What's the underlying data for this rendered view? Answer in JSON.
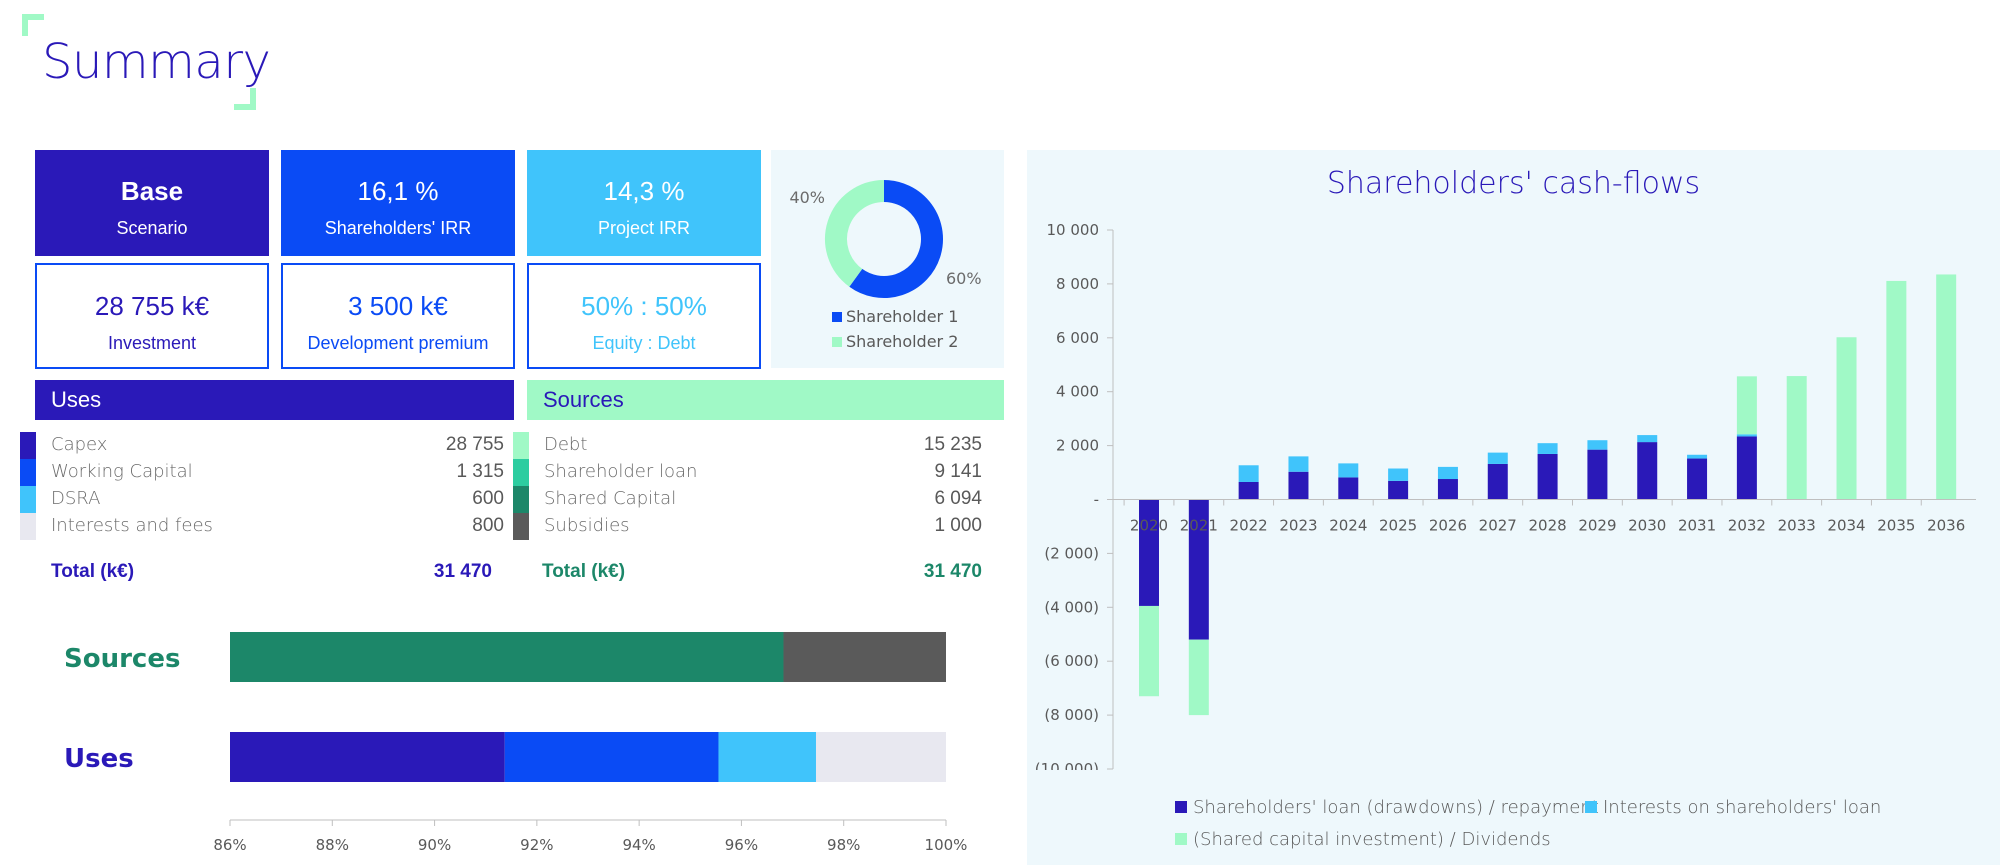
{
  "page": {
    "title": "Summary"
  },
  "kpis": [
    {
      "big": "Base",
      "small": "Scenario",
      "style": "solid",
      "color": "#2A19B8",
      "text": "#ffffff"
    },
    {
      "big": "16,1 %",
      "small": "Shareholders' IRR",
      "style": "solid",
      "color": "#0A4BF5",
      "text": "#ffffff"
    },
    {
      "big": "14,3 %",
      "small": "Project IRR",
      "style": "solid",
      "color": "#40C4FB",
      "text": "#ffffff"
    },
    {
      "big": "28 755 k€",
      "small": "Investment",
      "style": "outline",
      "color": "#0A4BF5",
      "text": "#2A19B8"
    },
    {
      "big": "3 500 k€",
      "small": "Development premium",
      "style": "outline",
      "color": "#0A4BF5",
      "text": "#0A4BF5"
    },
    {
      "big": "50% : 50%",
      "small": "Equity : Debt",
      "style": "outline",
      "color": "#0A4BF5",
      "text": "#40C4FB"
    }
  ],
  "uses": {
    "header": "Uses",
    "rows": [
      {
        "label": "Capex",
        "value": "28 755",
        "color": "#2A19B8"
      },
      {
        "label": "Working Capital",
        "value": "1 315",
        "color": "#0A4BF5"
      },
      {
        "label": "DSRA",
        "value": "600",
        "color": "#40C4FB"
      },
      {
        "label": "Interests and fees",
        "value": "800",
        "color": "#E8E8F0"
      }
    ],
    "total_label": "Total (k€)",
    "total_value": "31 470"
  },
  "sources": {
    "header": "Sources",
    "rows": [
      {
        "label": "Debt",
        "value": "15 235",
        "color": "#A0F9C6"
      },
      {
        "label": "Shareholder loan",
        "value": "9 141",
        "color": "#2CCDA0"
      },
      {
        "label": "Shared Capital",
        "value": "6 094",
        "color": "#1C8769"
      },
      {
        "label": "Subsidies",
        "value": "1 000",
        "color": "#5A5A5A"
      }
    ],
    "total_label": "Total (k€)",
    "total_value": "31 470"
  },
  "chart_data": [
    {
      "type": "pie",
      "title": "",
      "labels": [
        "Shareholder 1",
        "Shareholder 2"
      ],
      "values": [
        60,
        40
      ],
      "value_labels": [
        "60%",
        "40%"
      ],
      "colors": [
        "#0A4BF5",
        "#A0F9C6"
      ],
      "legend_position": "bottom"
    },
    {
      "type": "bar",
      "title": "",
      "orientation": "horizontal-stacked-percent",
      "categories": [
        "Sources",
        "Uses"
      ],
      "series": [
        {
          "name": "Debt",
          "category": "Sources",
          "value": 15235,
          "color": "#A0F9C6"
        },
        {
          "name": "Shareholder loan",
          "category": "Sources",
          "value": 9141,
          "color": "#2CCDA0"
        },
        {
          "name": "Shared Capital",
          "category": "Sources",
          "value": 6094,
          "color": "#1C8769"
        },
        {
          "name": "Subsidies",
          "category": "Sources",
          "value": 1000,
          "color": "#5A5A5A"
        },
        {
          "name": "Capex",
          "category": "Uses",
          "value": 28755,
          "color": "#2A19B8"
        },
        {
          "name": "Working Capital",
          "category": "Uses",
          "value": 1315,
          "color": "#0A4BF5"
        },
        {
          "name": "DSRA",
          "category": "Uses",
          "value": 600,
          "color": "#40C4FB"
        },
        {
          "name": "Interests and fees",
          "category": "Uses",
          "value": 800,
          "color": "#E8E8F0"
        }
      ],
      "xlim": [
        0.86,
        1.0
      ],
      "x_ticks": [
        "86%",
        "88%",
        "90%",
        "92%",
        "94%",
        "96%",
        "98%",
        "100%"
      ],
      "category_colors": {
        "Sources": "#1C8769",
        "Uses": "#2A19B8"
      }
    },
    {
      "type": "bar",
      "stacked": true,
      "title": "Shareholders' cash-flows",
      "x": [
        "2020",
        "2021",
        "2022",
        "2023",
        "2024",
        "2025",
        "2026",
        "2027",
        "2028",
        "2029",
        "2030",
        "2031",
        "2032",
        "2033",
        "2034",
        "2035",
        "2036"
      ],
      "series": [
        {
          "name": "Shareholders' loan (drawdowns) / repayment",
          "color": "#2A19B8",
          "values": [
            -3950,
            -5200,
            650,
            1030,
            820,
            690,
            760,
            1320,
            1690,
            1850,
            2130,
            1520,
            2340,
            0,
            0,
            0,
            0
          ]
        },
        {
          "name": "Interests on shareholders' loan",
          "color": "#40C4FB",
          "values": [
            0,
            0,
            620,
            570,
            520,
            460,
            450,
            420,
            400,
            350,
            260,
            140,
            80,
            0,
            0,
            0,
            0
          ]
        },
        {
          "name": "(Shared capital investment) / Dividends",
          "color": "#A0F9C6",
          "values": [
            -3350,
            -2800,
            0,
            0,
            0,
            0,
            0,
            0,
            0,
            0,
            0,
            0,
            2150,
            4580,
            6020,
            8110,
            8350
          ]
        }
      ],
      "ylim": [
        -10000,
        10000
      ],
      "y_ticks": [
        "10 000",
        "8 000",
        "6 000",
        "4 000",
        "2 000",
        "-",
        "(2 000)",
        "(4 000)",
        "(6 000)",
        "(8 000)",
        "(10 000)"
      ],
      "y_tick_values": [
        10000,
        8000,
        6000,
        4000,
        2000,
        0,
        -2000,
        -4000,
        -6000,
        -8000,
        -10000
      ],
      "legend_position": "bottom",
      "grid": false
    }
  ]
}
